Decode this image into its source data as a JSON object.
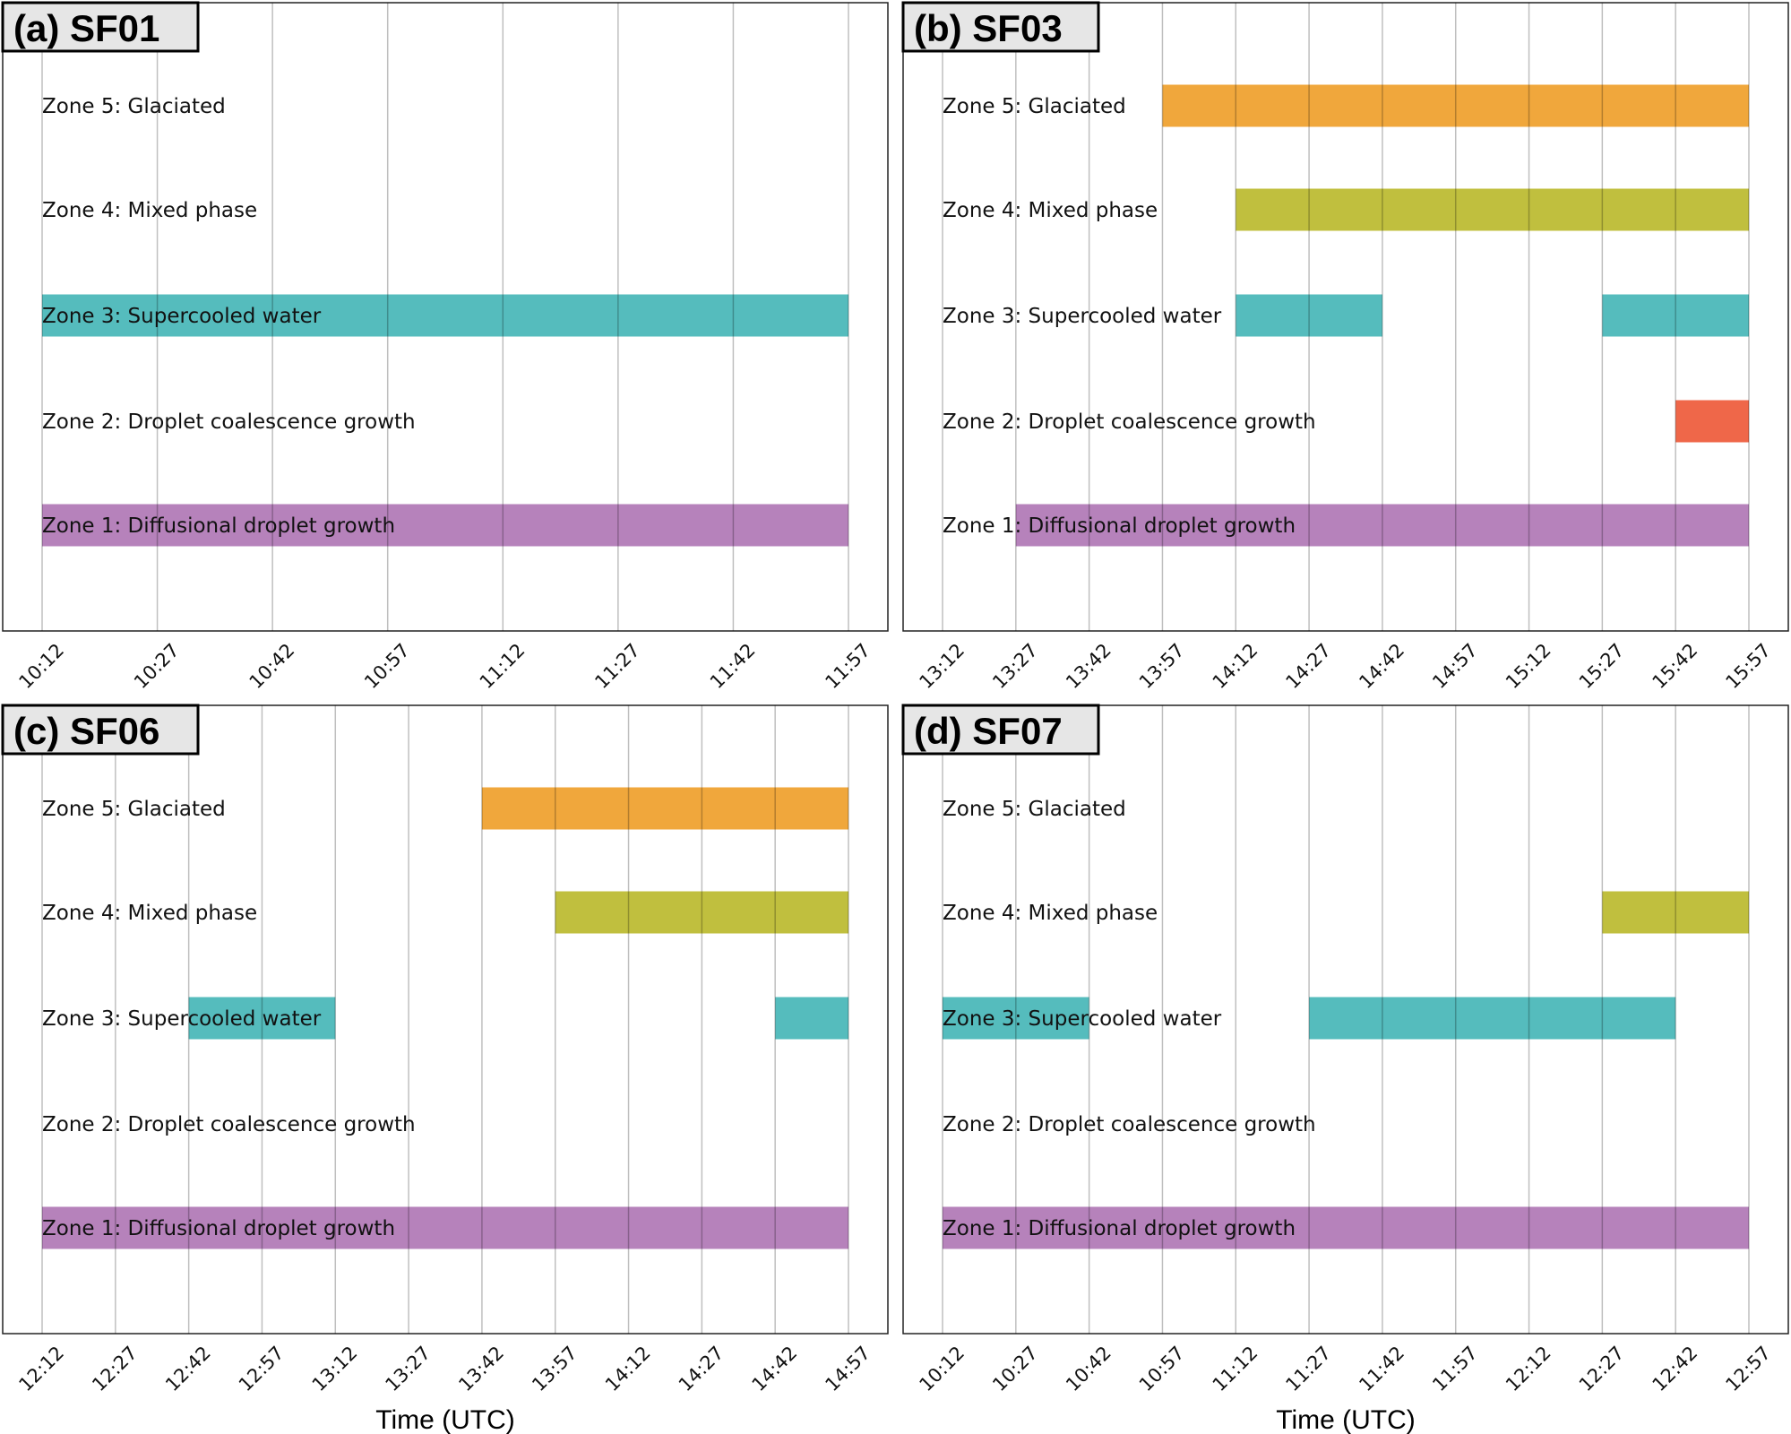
{
  "colors": {
    "zone5": "#f0a73c",
    "zone4": "#c0bf3e",
    "zone3": "#55bcbd",
    "zone2": "#ef6749",
    "zone1": "#b682bb"
  },
  "zone_labels": [
    "Zone 1: Diffusional droplet growth",
    "Zone 2: Droplet coalescence growth",
    "Zone 3: Supercooled water",
    "Zone 4: Mixed phase",
    "Zone 5: Glaciated"
  ],
  "chart_data": [
    {
      "type": "bar",
      "title": "(a) SF01",
      "xlabel": "",
      "ticks": [
        "10:12",
        "10:27",
        "10:42",
        "10:57",
        "11:12",
        "11:27",
        "11:42",
        "11:57"
      ],
      "bars": [
        {
          "zone": 3,
          "start": "10:12",
          "end": "11:57"
        },
        {
          "zone": 1,
          "start": "10:12",
          "end": "11:57"
        }
      ]
    },
    {
      "type": "bar",
      "title": "(b) SF03",
      "xlabel": "",
      "ticks": [
        "13:12",
        "13:27",
        "13:42",
        "13:57",
        "14:12",
        "14:27",
        "14:42",
        "14:57",
        "15:12",
        "15:27",
        "15:42",
        "15:57"
      ],
      "bars": [
        {
          "zone": 5,
          "start": "13:57",
          "end": "15:57"
        },
        {
          "zone": 4,
          "start": "14:12",
          "end": "15:57"
        },
        {
          "zone": 3,
          "start": "14:12",
          "end": "14:42"
        },
        {
          "zone": 3,
          "start": "15:27",
          "end": "15:57"
        },
        {
          "zone": 2,
          "start": "15:42",
          "end": "15:57"
        },
        {
          "zone": 1,
          "start": "13:27",
          "end": "15:57"
        }
      ]
    },
    {
      "type": "bar",
      "title": "(c) SF06",
      "xlabel": "Time (UTC)",
      "ticks": [
        "12:12",
        "12:27",
        "12:42",
        "12:57",
        "13:12",
        "13:27",
        "13:42",
        "13:57",
        "14:12",
        "14:27",
        "14:42",
        "14:57"
      ],
      "bars": [
        {
          "zone": 5,
          "start": "13:42",
          "end": "14:57"
        },
        {
          "zone": 4,
          "start": "13:57",
          "end": "14:57"
        },
        {
          "zone": 3,
          "start": "12:42",
          "end": "13:12"
        },
        {
          "zone": 3,
          "start": "14:42",
          "end": "14:57"
        },
        {
          "zone": 1,
          "start": "12:12",
          "end": "14:57"
        }
      ]
    },
    {
      "type": "bar",
      "title": "(d) SF07",
      "xlabel": "Time (UTC)",
      "ticks": [
        "10:12",
        "10:27",
        "10:42",
        "10:57",
        "11:12",
        "11:27",
        "11:42",
        "11:57",
        "12:12",
        "12:27",
        "12:42",
        "12:57"
      ],
      "bars": [
        {
          "zone": 4,
          "start": "12:27",
          "end": "12:57"
        },
        {
          "zone": 3,
          "start": "10:12",
          "end": "10:42"
        },
        {
          "zone": 3,
          "start": "11:27",
          "end": "12:42"
        },
        {
          "zone": 1,
          "start": "10:12",
          "end": "12:57"
        }
      ]
    }
  ]
}
